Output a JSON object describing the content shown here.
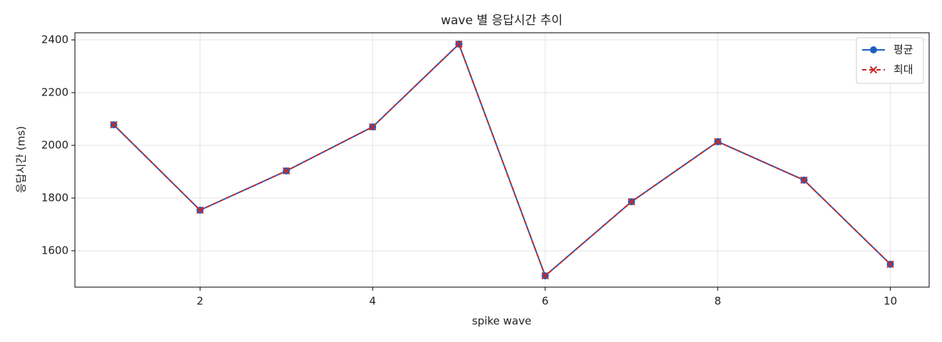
{
  "chart_data": {
    "type": "line",
    "title": "wave 별 응답시간 추이",
    "x_label": "spike wave",
    "y_label": "응답시간 (ms)",
    "x": [
      1,
      2,
      3,
      4,
      5,
      6,
      7,
      8,
      9,
      10
    ],
    "series": [
      {
        "name": "평균",
        "color": "#1f5fbf",
        "marker": "circle",
        "dash": false,
        "values": [
          2078,
          1754,
          1903,
          2070,
          2384,
          1505,
          1786,
          2014,
          1868,
          1549
        ]
      },
      {
        "name": "최대",
        "color": "#c62828",
        "marker": "x",
        "dash": true,
        "values": [
          2078,
          1754,
          1903,
          2070,
          2384,
          1505,
          1786,
          2014,
          1868,
          1549
        ]
      }
    ],
    "xlim": [
      0.55,
      10.45
    ],
    "xticks": [
      2,
      4,
      6,
      8,
      10
    ],
    "ylim": [
      1462,
      2427
    ],
    "yticks": [
      1600,
      1800,
      2000,
      2200,
      2400
    ],
    "grid": true,
    "legend": "upper right"
  }
}
